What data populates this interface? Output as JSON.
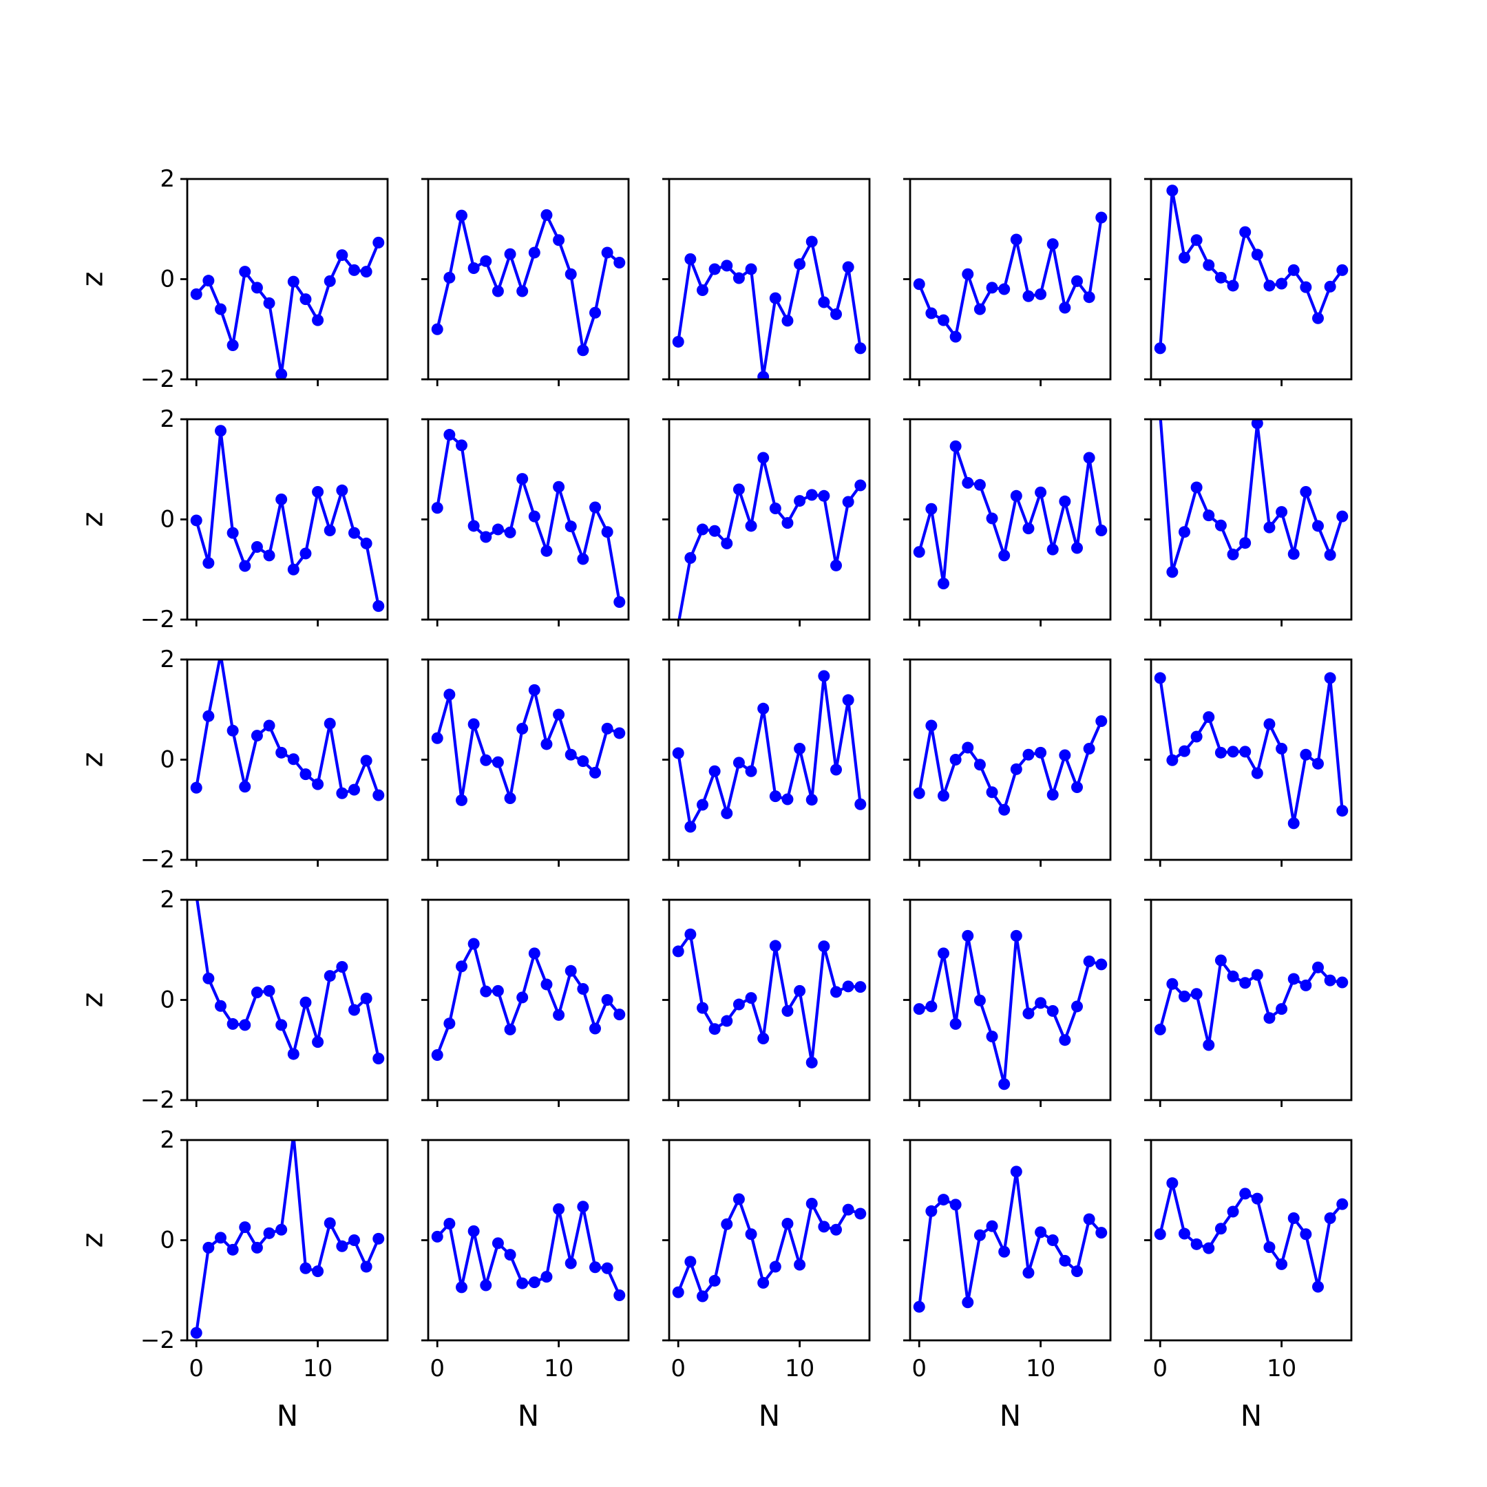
{
  "chart_data": {
    "type": "line",
    "layout": {
      "rows": 5,
      "cols": 5
    },
    "xlabel": "N",
    "ylabel": "z",
    "xlim": [
      -0.75,
      15.75
    ],
    "ylim": [
      -2,
      2
    ],
    "xticks": [
      0,
      10
    ],
    "yticks": [
      -2,
      0,
      2
    ],
    "x": [
      0,
      1,
      2,
      3,
      4,
      5,
      6,
      7,
      8,
      9,
      10,
      11,
      12,
      13,
      14,
      15
    ],
    "line_color": "#0000ff",
    "marker": "circle",
    "panels": [
      {
        "values": [
          -0.3,
          -0.03,
          -0.6,
          -1.32,
          0.15,
          -0.17,
          -0.48,
          -1.9,
          -0.05,
          -0.4,
          -0.82,
          -0.04,
          0.48,
          0.18,
          0.15,
          0.73
        ]
      },
      {
        "values": [
          -1.0,
          0.03,
          1.27,
          0.22,
          0.36,
          -0.24,
          0.5,
          -0.24,
          0.53,
          1.28,
          0.78,
          0.1,
          -1.42,
          -0.67,
          0.53,
          0.33
        ]
      },
      {
        "values": [
          -1.25,
          0.4,
          -0.22,
          0.2,
          0.27,
          0.02,
          0.2,
          -1.95,
          -0.38,
          -0.83,
          0.3,
          0.75,
          -0.46,
          -0.7,
          0.24,
          -1.38
        ]
      },
      {
        "values": [
          -0.1,
          -0.68,
          -0.82,
          -1.15,
          0.1,
          -0.6,
          -0.17,
          -0.2,
          0.79,
          -0.34,
          -0.3,
          0.7,
          -0.57,
          -0.04,
          -0.36,
          1.23
        ]
      },
      {
        "values": [
          -1.38,
          1.77,
          0.43,
          0.78,
          0.28,
          0.03,
          -0.13,
          0.94,
          0.49,
          -0.13,
          -0.09,
          0.18,
          -0.16,
          -0.78,
          -0.15,
          0.18
        ]
      },
      {
        "values": [
          -0.02,
          -0.87,
          1.77,
          -0.27,
          -0.93,
          -0.55,
          -0.72,
          0.4,
          -1.0,
          -0.68,
          0.55,
          -0.22,
          0.58,
          -0.27,
          -0.48,
          -1.73
        ]
      },
      {
        "values": [
          0.23,
          1.69,
          1.48,
          -0.13,
          -0.35,
          -0.2,
          -0.26,
          0.81,
          0.06,
          -0.63,
          0.65,
          -0.14,
          -0.79,
          0.24,
          -0.25,
          -1.65
        ]
      },
      {
        "values": [
          -2.1,
          -0.77,
          -0.2,
          -0.23,
          -0.48,
          0.6,
          -0.13,
          1.23,
          0.22,
          -0.07,
          0.37,
          0.49,
          0.47,
          -0.92,
          0.35,
          0.68
        ]
      },
      {
        "values": [
          -0.65,
          0.21,
          -1.28,
          1.46,
          0.73,
          0.69,
          0.02,
          -0.72,
          0.47,
          -0.18,
          0.54,
          -0.6,
          0.36,
          -0.57,
          1.23,
          -0.22
        ]
      },
      {
        "values": [
          2.1,
          -1.05,
          -0.25,
          0.64,
          0.08,
          -0.12,
          -0.7,
          -0.47,
          1.92,
          -0.16,
          0.15,
          -0.69,
          0.55,
          -0.13,
          -0.71,
          0.06
        ]
      },
      {
        "values": [
          -0.56,
          0.87,
          2.1,
          0.58,
          -0.54,
          0.48,
          0.68,
          0.14,
          0.01,
          -0.29,
          -0.49,
          0.72,
          -0.67,
          -0.6,
          -0.02,
          -0.71
        ]
      },
      {
        "values": [
          0.43,
          1.3,
          -0.81,
          0.71,
          -0.01,
          -0.05,
          -0.77,
          0.62,
          1.39,
          0.31,
          0.9,
          0.1,
          -0.03,
          -0.26,
          0.62,
          0.53
        ]
      },
      {
        "values": [
          0.13,
          -1.34,
          -0.9,
          -0.23,
          -1.07,
          -0.06,
          -0.23,
          1.02,
          -0.73,
          -0.79,
          0.22,
          -0.8,
          1.67,
          -0.2,
          1.19,
          -0.89
        ]
      },
      {
        "values": [
          -0.67,
          0.68,
          -0.72,
          0.0,
          0.24,
          -0.1,
          -0.65,
          -1.0,
          -0.19,
          0.1,
          0.14,
          -0.7,
          0.09,
          -0.55,
          0.22,
          0.77
        ]
      },
      {
        "values": [
          1.63,
          -0.01,
          0.17,
          0.46,
          0.85,
          0.14,
          0.16,
          0.16,
          -0.27,
          0.71,
          0.22,
          -1.27,
          0.1,
          -0.08,
          1.63,
          -1.02
        ]
      },
      {
        "values": [
          2.1,
          0.43,
          -0.12,
          -0.48,
          -0.5,
          0.15,
          0.18,
          -0.5,
          -1.08,
          -0.05,
          -0.84,
          0.48,
          0.66,
          -0.2,
          0.03,
          -1.17
        ]
      },
      {
        "values": [
          -1.1,
          -0.47,
          0.67,
          1.12,
          0.17,
          0.18,
          -0.59,
          0.05,
          0.93,
          0.31,
          -0.3,
          0.58,
          0.22,
          -0.57,
          0.0,
          -0.29
        ]
      },
      {
        "values": [
          0.97,
          1.31,
          -0.16,
          -0.58,
          -0.42,
          -0.09,
          0.04,
          -0.77,
          1.08,
          -0.22,
          0.18,
          -1.25,
          1.07,
          0.16,
          0.27,
          0.26
        ]
      },
      {
        "values": [
          -0.18,
          -0.13,
          0.93,
          -0.48,
          1.28,
          -0.01,
          -0.73,
          -1.68,
          1.28,
          -0.27,
          -0.06,
          -0.22,
          -0.8,
          -0.13,
          0.77,
          0.71
        ]
      },
      {
        "values": [
          -0.59,
          0.32,
          0.07,
          0.12,
          -0.9,
          0.79,
          0.47,
          0.34,
          0.5,
          -0.36,
          -0.18,
          0.42,
          0.29,
          0.65,
          0.39,
          0.35
        ]
      },
      {
        "values": [
          -1.85,
          -0.15,
          0.05,
          -0.19,
          0.26,
          -0.15,
          0.14,
          0.21,
          2.1,
          -0.56,
          -0.62,
          0.34,
          -0.12,
          0.0,
          -0.53,
          0.03
        ]
      },
      {
        "values": [
          0.07,
          0.33,
          -0.94,
          0.18,
          -0.9,
          -0.06,
          -0.29,
          -0.86,
          -0.84,
          -0.73,
          0.62,
          -0.46,
          0.67,
          -0.54,
          -0.56,
          -1.1
        ]
      },
      {
        "values": [
          -1.04,
          -0.43,
          -1.12,
          -0.81,
          0.32,
          0.82,
          0.12,
          -0.85,
          -0.53,
          0.33,
          -0.49,
          0.73,
          0.27,
          0.21,
          0.61,
          0.53
        ]
      },
      {
        "values": [
          -1.33,
          0.58,
          0.81,
          0.71,
          -1.24,
          0.1,
          0.28,
          -0.23,
          1.37,
          -0.65,
          0.16,
          0.0,
          -0.41,
          -0.62,
          0.42,
          0.15
        ]
      },
      {
        "values": [
          0.12,
          1.14,
          0.13,
          -0.08,
          -0.16,
          0.23,
          0.57,
          0.93,
          0.83,
          -0.14,
          -0.48,
          0.44,
          0.12,
          -0.93,
          0.44,
          0.72
        ]
      }
    ]
  }
}
